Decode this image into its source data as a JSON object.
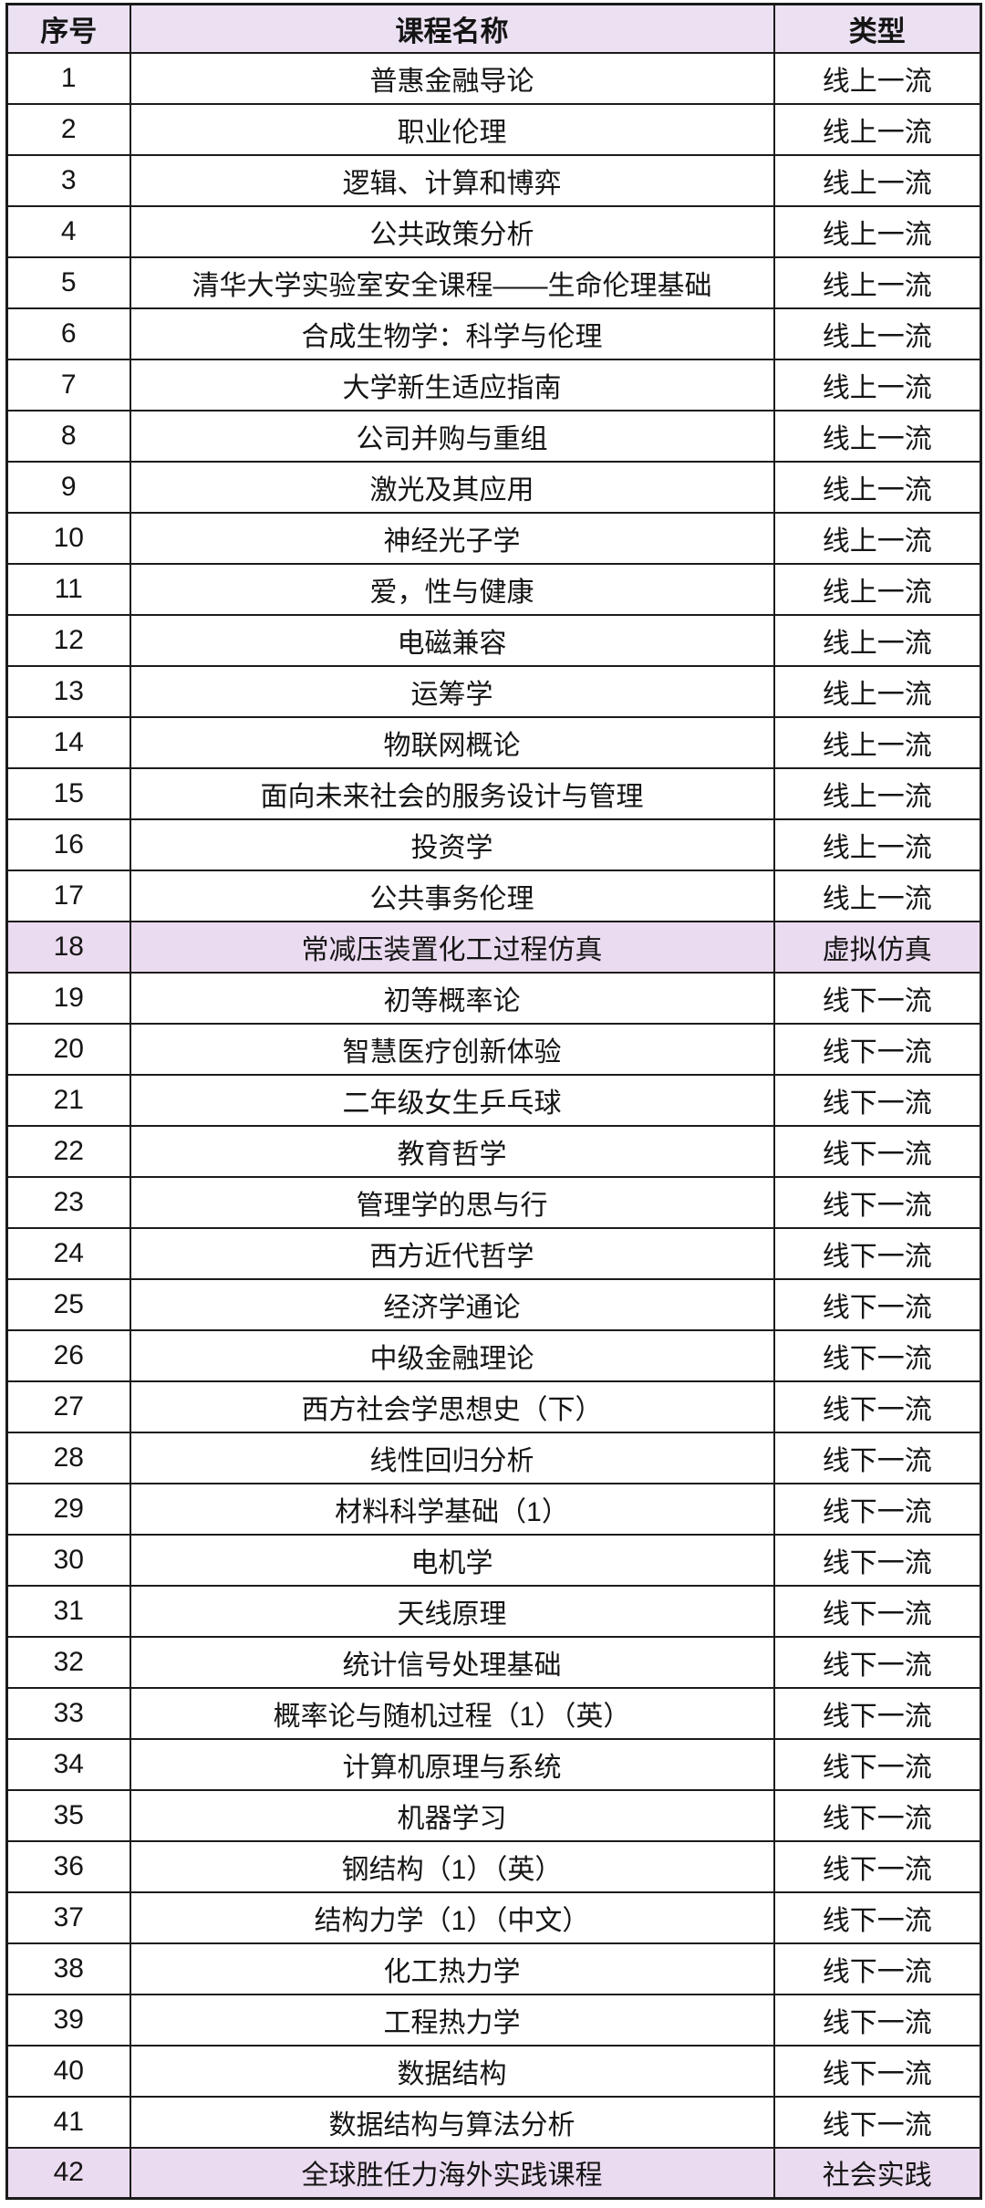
{
  "colors": {
    "header_bg": "#ece1f3",
    "highlight_bg": "#ebdbf0",
    "border": "#1b1b1b"
  },
  "table": {
    "columns": {
      "no": "序号",
      "name": "课程名称",
      "type": "类型"
    },
    "rows": [
      {
        "no": "1",
        "name": "普惠金融导论",
        "type": "线上一流",
        "highlight": false
      },
      {
        "no": "2",
        "name": "职业伦理",
        "type": "线上一流",
        "highlight": false
      },
      {
        "no": "3",
        "name": "逻辑、计算和博弈",
        "type": "线上一流",
        "highlight": false
      },
      {
        "no": "4",
        "name": "公共政策分析",
        "type": "线上一流",
        "highlight": false
      },
      {
        "no": "5",
        "name": "清华大学实验室安全课程——生命伦理基础",
        "type": "线上一流",
        "highlight": false
      },
      {
        "no": "6",
        "name": "合成生物学：科学与伦理",
        "type": "线上一流",
        "highlight": false
      },
      {
        "no": "7",
        "name": "大学新生适应指南",
        "type": "线上一流",
        "highlight": false
      },
      {
        "no": "8",
        "name": "公司并购与重组",
        "type": "线上一流",
        "highlight": false
      },
      {
        "no": "9",
        "name": "激光及其应用",
        "type": "线上一流",
        "highlight": false
      },
      {
        "no": "10",
        "name": "神经光子学",
        "type": "线上一流",
        "highlight": false
      },
      {
        "no": "11",
        "name": "爱，性与健康",
        "type": "线上一流",
        "highlight": false
      },
      {
        "no": "12",
        "name": "电磁兼容",
        "type": "线上一流",
        "highlight": false
      },
      {
        "no": "13",
        "name": "运筹学",
        "type": "线上一流",
        "highlight": false
      },
      {
        "no": "14",
        "name": "物联网概论",
        "type": "线上一流",
        "highlight": false
      },
      {
        "no": "15",
        "name": "面向未来社会的服务设计与管理",
        "type": "线上一流",
        "highlight": false
      },
      {
        "no": "16",
        "name": "投资学",
        "type": "线上一流",
        "highlight": false
      },
      {
        "no": "17",
        "name": "公共事务伦理",
        "type": "线上一流",
        "highlight": false
      },
      {
        "no": "18",
        "name": "常减压装置化工过程仿真",
        "type": "虚拟仿真",
        "highlight": true
      },
      {
        "no": "19",
        "name": "初等概率论",
        "type": "线下一流",
        "highlight": false
      },
      {
        "no": "20",
        "name": "智慧医疗创新体验",
        "type": "线下一流",
        "highlight": false
      },
      {
        "no": "21",
        "name": "二年级女生乒乓球",
        "type": "线下一流",
        "highlight": false
      },
      {
        "no": "22",
        "name": "教育哲学",
        "type": "线下一流",
        "highlight": false
      },
      {
        "no": "23",
        "name": "管理学的思与行",
        "type": "线下一流",
        "highlight": false
      },
      {
        "no": "24",
        "name": "西方近代哲学",
        "type": "线下一流",
        "highlight": false
      },
      {
        "no": "25",
        "name": "经济学通论",
        "type": "线下一流",
        "highlight": false
      },
      {
        "no": "26",
        "name": "中级金融理论",
        "type": "线下一流",
        "highlight": false
      },
      {
        "no": "27",
        "name": "西方社会学思想史（下）",
        "type": "线下一流",
        "highlight": false
      },
      {
        "no": "28",
        "name": "线性回归分析",
        "type": "线下一流",
        "highlight": false
      },
      {
        "no": "29",
        "name": "材料科学基础（1）",
        "type": "线下一流",
        "highlight": false
      },
      {
        "no": "30",
        "name": "电机学",
        "type": "线下一流",
        "highlight": false
      },
      {
        "no": "31",
        "name": "天线原理",
        "type": "线下一流",
        "highlight": false
      },
      {
        "no": "32",
        "name": "统计信号处理基础",
        "type": "线下一流",
        "highlight": false
      },
      {
        "no": "33",
        "name": "概率论与随机过程（1）（英）",
        "type": "线下一流",
        "highlight": false
      },
      {
        "no": "34",
        "name": "计算机原理与系统",
        "type": "线下一流",
        "highlight": false
      },
      {
        "no": "35",
        "name": "机器学习",
        "type": "线下一流",
        "highlight": false
      },
      {
        "no": "36",
        "name": "钢结构（1）（英）",
        "type": "线下一流",
        "highlight": false
      },
      {
        "no": "37",
        "name": "结构力学（1）（中文）",
        "type": "线下一流",
        "highlight": false
      },
      {
        "no": "38",
        "name": "化工热力学",
        "type": "线下一流",
        "highlight": false
      },
      {
        "no": "39",
        "name": "工程热力学",
        "type": "线下一流",
        "highlight": false
      },
      {
        "no": "40",
        "name": "数据结构",
        "type": "线下一流",
        "highlight": false
      },
      {
        "no": "41",
        "name": "数据结构与算法分析",
        "type": "线下一流",
        "highlight": false
      },
      {
        "no": "42",
        "name": "全球胜任力海外实践课程",
        "type": "社会实践",
        "highlight": true
      }
    ]
  }
}
